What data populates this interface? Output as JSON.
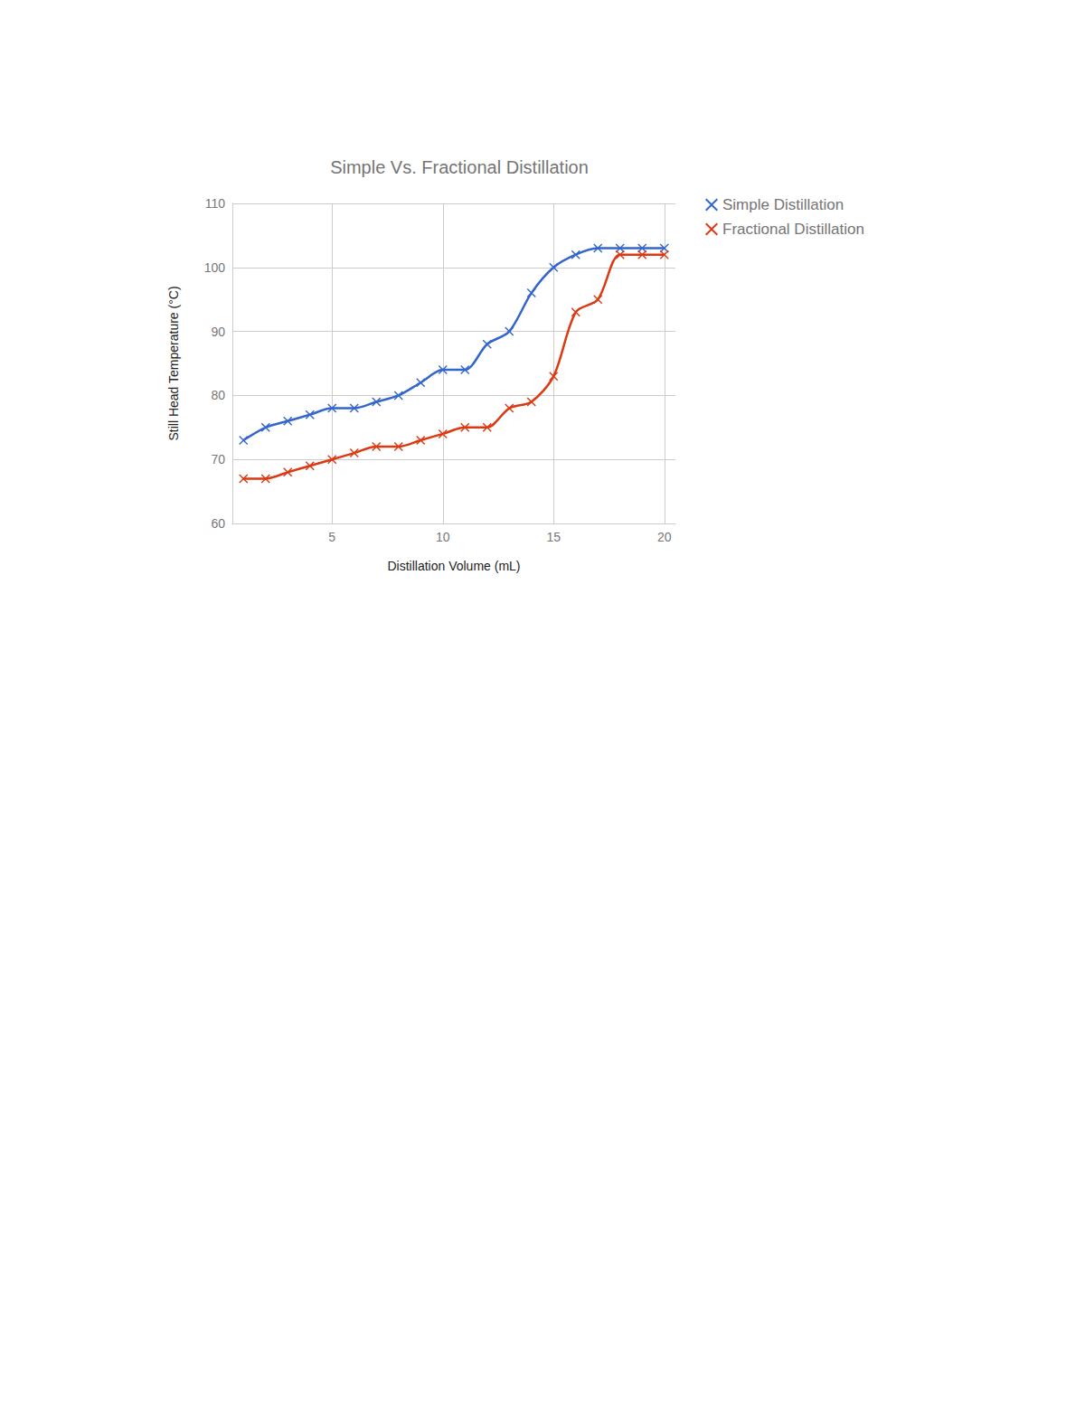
{
  "chart_data": {
    "type": "line",
    "title": "Simple Vs. Fractional Distillation",
    "x_label": "Distillation Volume (mL)",
    "y_label": "Still Head Temperature (°C)",
    "x": [
      1,
      2,
      3,
      4,
      5,
      6,
      7,
      8,
      9,
      10,
      11,
      12,
      13,
      14,
      15,
      16,
      17,
      18,
      19,
      20
    ],
    "series": [
      {
        "name": "Simple Distillation",
        "color": "#3366cc",
        "values": [
          73,
          75,
          76,
          77,
          78,
          78,
          79,
          80,
          82,
          84,
          84,
          88,
          90,
          96,
          100,
          102,
          103,
          103,
          103,
          103
        ]
      },
      {
        "name": "Fractional Distillation",
        "color": "#dc3912",
        "values": [
          67,
          67,
          68,
          69,
          70,
          71,
          72,
          72,
          73,
          74,
          75,
          75,
          78,
          79,
          83,
          93,
          95,
          102,
          102,
          102
        ]
      }
    ],
    "xlim": [
      0.5,
      20.5
    ],
    "xticks": [
      5,
      10,
      15,
      20
    ],
    "ylim": [
      60,
      110
    ],
    "yticks": [
      60,
      70,
      80,
      90,
      100,
      110
    ],
    "grid": true,
    "legend": "right",
    "marker": "x",
    "line_style": "smooth"
  }
}
